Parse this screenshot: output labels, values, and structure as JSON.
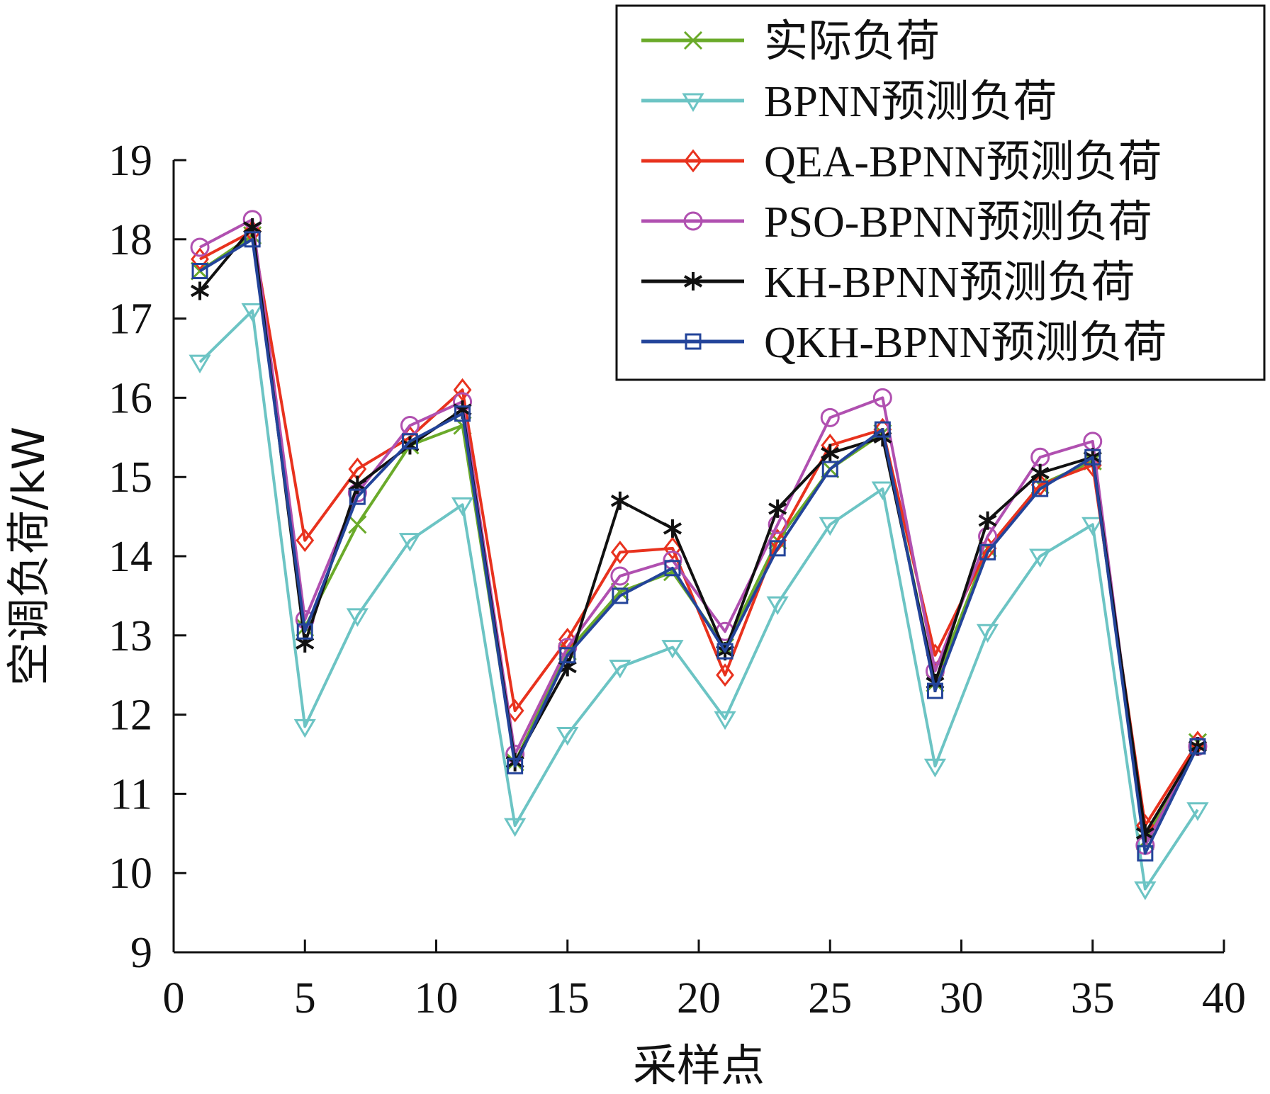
{
  "chart_data": {
    "type": "line",
    "xlabel": "采样点",
    "ylabel": "空调负荷/kW",
    "xlim": [
      0,
      40
    ],
    "ylim": [
      9,
      19
    ],
    "xticks": [
      0,
      5,
      10,
      15,
      20,
      25,
      30,
      35,
      40
    ],
    "yticks": [
      9,
      10,
      11,
      12,
      13,
      14,
      15,
      16,
      17,
      18,
      19
    ],
    "legend_position": "top-right",
    "grid": false,
    "x": [
      1,
      3,
      5,
      7,
      9,
      11,
      13,
      15,
      17,
      19,
      21,
      23,
      25,
      27,
      29,
      31,
      33,
      35,
      37,
      39
    ],
    "series": [
      {
        "name": "实际负荷",
        "color": "#6aaa2a",
        "marker": "x",
        "values": [
          17.6,
          18.05,
          13.1,
          14.4,
          15.4,
          15.65,
          11.4,
          12.8,
          13.55,
          13.8,
          12.85,
          14.2,
          15.1,
          15.55,
          12.4,
          14.1,
          14.9,
          15.2,
          10.4,
          11.65
        ]
      },
      {
        "name": "BPNN预测负荷",
        "color": "#6cc4c4",
        "marker": "triangle-down",
        "values": [
          16.45,
          17.1,
          11.85,
          13.25,
          14.2,
          14.65,
          10.6,
          11.75,
          12.6,
          12.85,
          11.95,
          13.4,
          14.4,
          14.85,
          11.35,
          13.05,
          14.0,
          14.4,
          9.8,
          10.8
        ]
      },
      {
        "name": "QEA-BPNN预测负荷",
        "color": "#e8321e",
        "marker": "diamond",
        "values": [
          17.75,
          18.1,
          14.2,
          15.1,
          15.5,
          16.1,
          12.05,
          12.95,
          14.05,
          14.1,
          12.5,
          14.2,
          15.4,
          15.6,
          12.75,
          14.1,
          14.9,
          15.15,
          10.6,
          11.65
        ]
      },
      {
        "name": "PSO-BPNN预测负荷",
        "color": "#b050b0",
        "marker": "circle",
        "values": [
          17.9,
          18.25,
          13.2,
          14.8,
          15.65,
          15.95,
          11.5,
          12.85,
          13.75,
          13.95,
          13.05,
          14.4,
          15.75,
          16.0,
          12.55,
          14.25,
          15.25,
          15.45,
          10.35,
          11.6
        ]
      },
      {
        "name": "KH-BPNN预测负荷",
        "color": "#111111",
        "marker": "asterisk",
        "values": [
          17.35,
          18.15,
          12.9,
          14.9,
          15.4,
          15.85,
          11.4,
          12.6,
          14.7,
          14.35,
          12.8,
          14.6,
          15.3,
          15.5,
          12.4,
          14.45,
          15.05,
          15.25,
          10.5,
          11.6
        ]
      },
      {
        "name": "QKH-BPNN预测负荷",
        "color": "#23449a",
        "marker": "square",
        "values": [
          17.6,
          18.0,
          13.05,
          14.75,
          15.45,
          15.8,
          11.35,
          12.75,
          13.5,
          13.85,
          12.8,
          14.1,
          15.1,
          15.6,
          12.3,
          14.05,
          14.85,
          15.25,
          10.25,
          11.6
        ]
      }
    ]
  }
}
